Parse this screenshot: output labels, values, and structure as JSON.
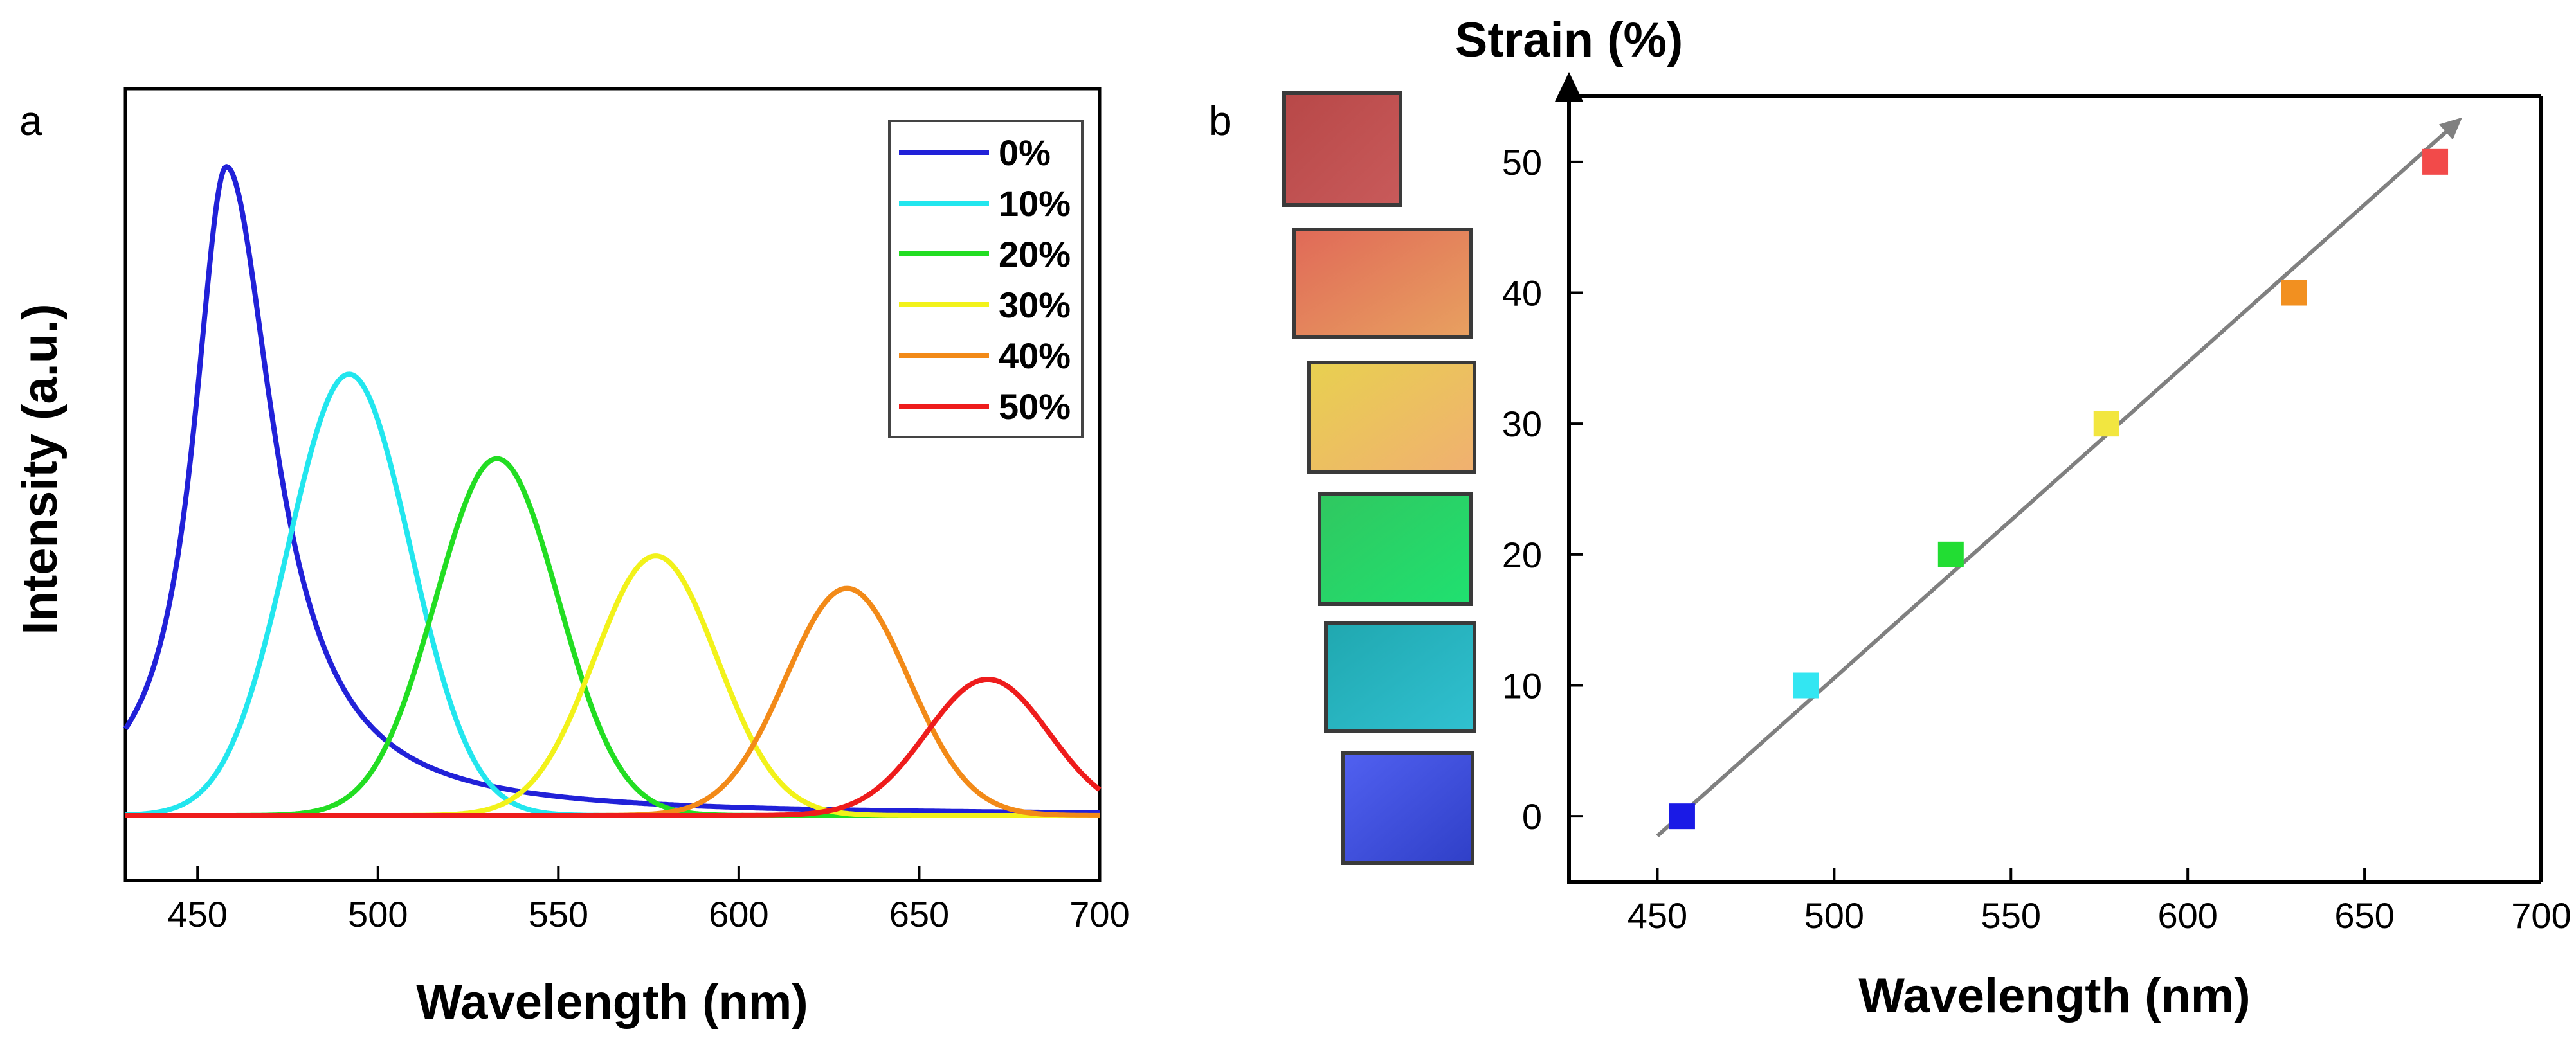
{
  "panel_labels": {
    "a": "a",
    "b": "b"
  },
  "chart_data": [
    {
      "type": "line",
      "panel": "a",
      "xlabel": "Wavelength (nm)",
      "ylabel": "Intensity (a.u.)",
      "xlim": [
        430,
        700
      ],
      "ylim": [
        -0.1,
        1.12
      ],
      "xticks": [
        450,
        500,
        550,
        600,
        650,
        700
      ],
      "legend_position": "top-right",
      "series": [
        {
          "name": "0%",
          "color": "#2121d8",
          "peak": 458,
          "amplitude": 1.0,
          "baseline": 0.0,
          "notes": "Lorentzian-like peak with long red tail"
        },
        {
          "name": "10%",
          "color": "#22e6ee",
          "peak": 492,
          "amplitude": 0.68,
          "baseline": 0.0
        },
        {
          "name": "20%",
          "color": "#22dd22",
          "peak": 533,
          "amplitude": 0.55,
          "baseline": 0.0
        },
        {
          "name": "30%",
          "color": "#f2f21a",
          "peak": 577,
          "amplitude": 0.4,
          "baseline": 0.0
        },
        {
          "name": "40%",
          "color": "#f28a18",
          "peak": 630,
          "amplitude": 0.35,
          "baseline": 0.0
        },
        {
          "name": "50%",
          "color": "#ee1c1c",
          "peak": 669,
          "amplitude": 0.21,
          "baseline": 0.0
        }
      ]
    },
    {
      "type": "scatter",
      "panel": "b",
      "xlabel": "Wavelength (nm)",
      "ylabel": "Strain (%)",
      "xlim": [
        425,
        700
      ],
      "ylim": [
        -5,
        55
      ],
      "xticks": [
        450,
        500,
        550,
        600,
        650,
        700
      ],
      "yticks": [
        0,
        10,
        20,
        30,
        40,
        50
      ],
      "points": [
        {
          "x": 457,
          "y": 0,
          "color": "#1a1ae6"
        },
        {
          "x": 492,
          "y": 10,
          "color": "#33e6f2"
        },
        {
          "x": 533,
          "y": 20,
          "color": "#22dd33"
        },
        {
          "x": 577,
          "y": 30,
          "color": "#f2e640"
        },
        {
          "x": 630,
          "y": 40,
          "color": "#f29020"
        },
        {
          "x": 670,
          "y": 50,
          "color": "#f24a4a"
        }
      ],
      "fit_line": {
        "x_start": 450,
        "y_start": -1.5,
        "x_end": 676,
        "y_end": 53,
        "color": "#808080",
        "arrow": true
      },
      "sample_swatches": [
        {
          "strain": "50%",
          "color_top": "#b84848",
          "color_bottom": "#c85a5a"
        },
        {
          "strain": "40%",
          "color_top": "#e06a58",
          "color_bottom": "#e8a060"
        },
        {
          "strain": "30%",
          "color_top": "#e8d050",
          "color_bottom": "#f0b070"
        },
        {
          "strain": "20%",
          "color_top": "#30c860",
          "color_bottom": "#20e070"
        },
        {
          "strain": "10%",
          "color_top": "#20a8b0",
          "color_bottom": "#30c0d0"
        },
        {
          "strain": "0%",
          "color_top": "#5060f0",
          "color_bottom": "#3040c8"
        }
      ]
    }
  ]
}
